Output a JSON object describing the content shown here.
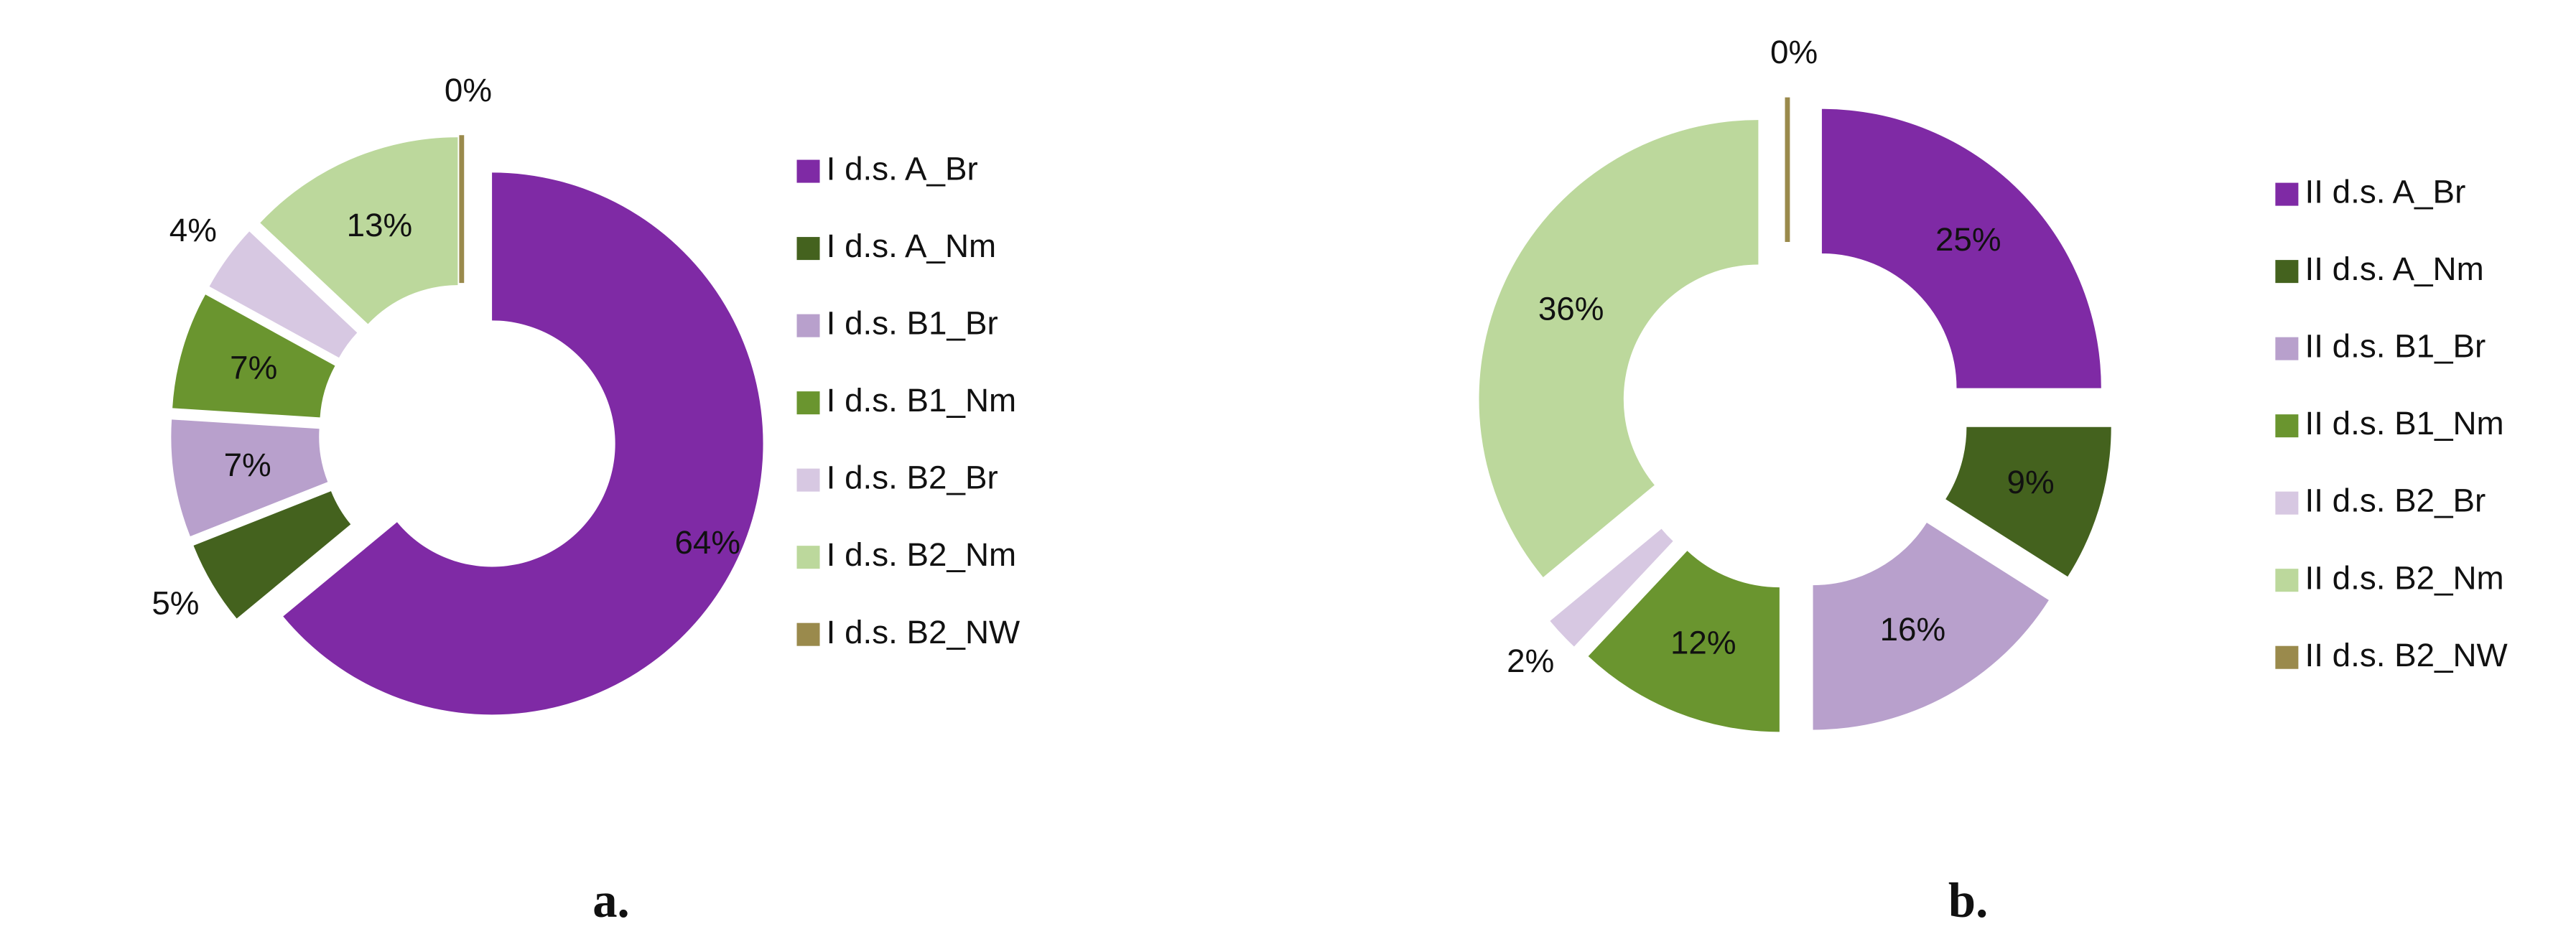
{
  "chart_data": [
    {
      "type": "donut",
      "caption": "a.",
      "categories": [
        "I d.s. A_Br",
        "I d.s. A_Nm",
        "I d.s. B1_Br",
        "I d.s. B1_Nm",
        "I d.s. B2_Br",
        "I d.s. B2_Nm",
        "I d.s. B2_NW"
      ],
      "values": [
        64,
        5,
        7,
        7,
        4,
        13,
        0
      ],
      "value_labels": [
        "64%",
        "5%",
        "7%",
        "7%",
        "4%",
        "13%",
        "0%"
      ],
      "colors": [
        "#7f2aa5",
        "#44621e",
        "#b8a0cc",
        "#6a952f",
        "#d7c8e2",
        "#bcd89c",
        "#9a8a4c"
      ]
    },
    {
      "type": "donut",
      "caption": "b.",
      "categories": [
        "II d.s. A_Br",
        "II d.s. A_Nm",
        "II d.s. B1_Br",
        "II d.s. B1_Nm",
        "II d.s. B2_Br",
        "II d.s. B2_Nm",
        "II d.s. B2_NW"
      ],
      "values": [
        25,
        9,
        16,
        12,
        2,
        36,
        0
      ],
      "value_labels": [
        "25%",
        "9%",
        "16%",
        "12%",
        "2%",
        "36%",
        "0%"
      ],
      "colors": [
        "#7f2aa5",
        "#44621e",
        "#b8a0cc",
        "#6a952f",
        "#d7c8e2",
        "#bcd89c",
        "#9a8a4c"
      ]
    }
  ]
}
